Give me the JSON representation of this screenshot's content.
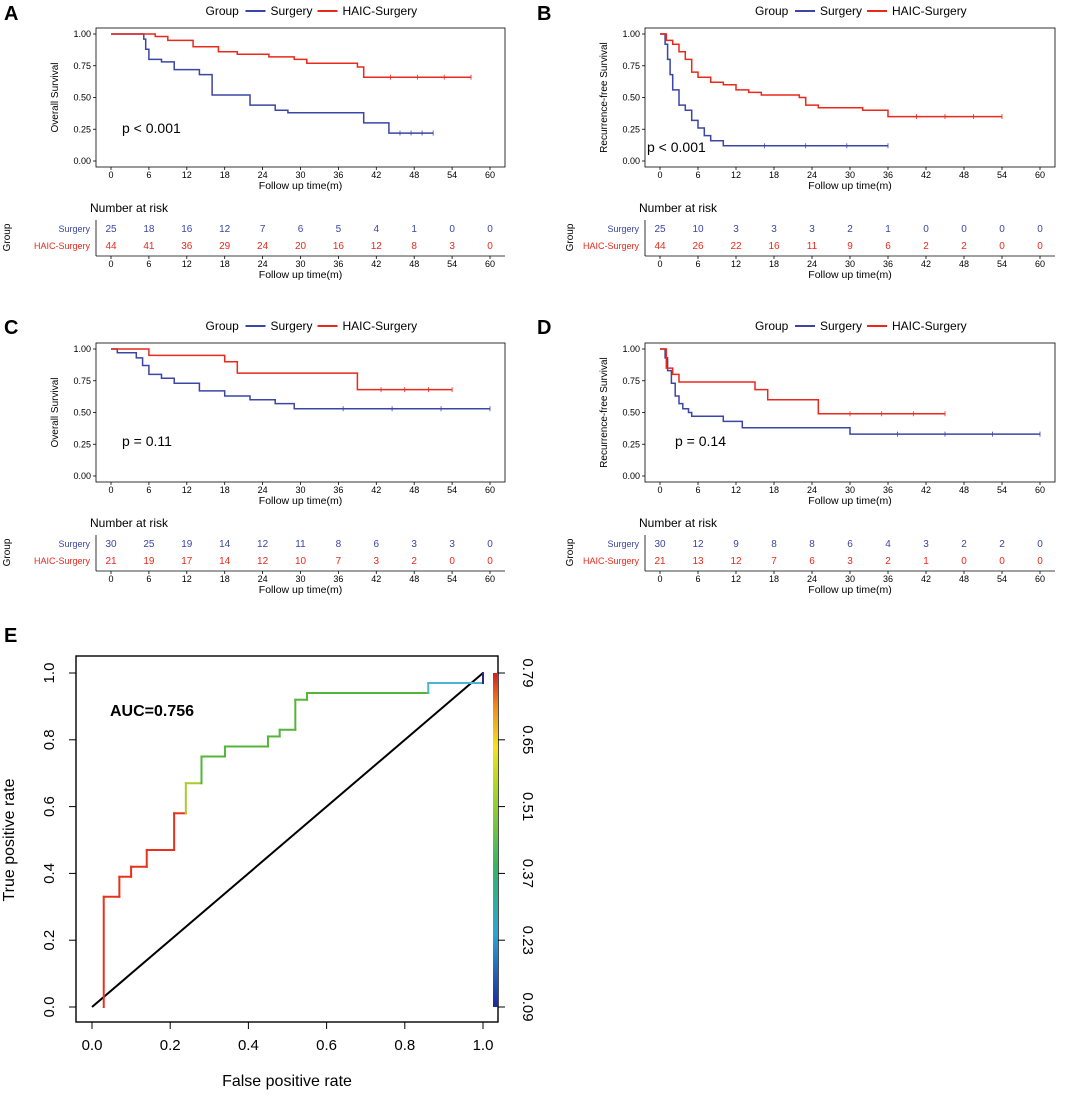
{
  "figure": {
    "panels": [
      "A",
      "B",
      "C",
      "D",
      "E"
    ],
    "legend": {
      "title": "Group",
      "surgery": "Surgery",
      "haic": "HAIC-Surgery"
    },
    "risk": {
      "title": "Number at risk",
      "group_label": "Group",
      "row_surgery": "Surgery",
      "row_haic": "HAIC-Surgery"
    },
    "colors": {
      "surgery": "#3b45a5",
      "haic": "#e8291c",
      "axis": "#000000"
    }
  },
  "chart_data": [
    {
      "type": "line",
      "panel": "A",
      "ylabel": "Overall Survival",
      "xlabel": "Follow up time(m)",
      "annotation": "p < 0.001",
      "xticks": [
        0,
        6,
        12,
        18,
        24,
        30,
        36,
        42,
        48,
        54,
        60
      ],
      "yticks": [
        "0.00",
        "0.25",
        "0.50",
        "0.75",
        "1.00"
      ],
      "xlim": [
        0,
        60
      ],
      "ylim": [
        0,
        1
      ],
      "series": [
        {
          "name": "Surgery",
          "points": [
            [
              0,
              1
            ],
            [
              5,
              1
            ],
            [
              5.2,
              0.96
            ],
            [
              5.5,
              0.88
            ],
            [
              6,
              0.8
            ],
            [
              8,
              0.78
            ],
            [
              10,
              0.72
            ],
            [
              14,
              0.68
            ],
            [
              16,
              0.52
            ],
            [
              20,
              0.52
            ],
            [
              22,
              0.44
            ],
            [
              26,
              0.4
            ],
            [
              28,
              0.38
            ],
            [
              38,
              0.38
            ],
            [
              40,
              0.3
            ],
            [
              43,
              0.3
            ],
            [
              44,
              0.22
            ],
            [
              51,
              0.22
            ]
          ]
        },
        {
          "name": "HAIC-Surgery",
          "points": [
            [
              0,
              1
            ],
            [
              6,
              1
            ],
            [
              7,
              0.98
            ],
            [
              9,
              0.95
            ],
            [
              13,
              0.9
            ],
            [
              17,
              0.86
            ],
            [
              20,
              0.84
            ],
            [
              25,
              0.82
            ],
            [
              29,
              0.8
            ],
            [
              31,
              0.77
            ],
            [
              38,
              0.77
            ],
            [
              39,
              0.74
            ],
            [
              40,
              0.66
            ],
            [
              57,
              0.66
            ]
          ]
        }
      ],
      "risk_table": {
        "times": [
          0,
          6,
          12,
          18,
          24,
          30,
          36,
          42,
          48,
          54,
          60
        ],
        "surgery": [
          "25",
          "18",
          "16",
          "12",
          "7",
          "6",
          "5",
          "4",
          "1",
          "0",
          "0"
        ],
        "haic": [
          "44",
          "41",
          "36",
          "29",
          "24",
          "20",
          "16",
          "12",
          "8",
          "3",
          "0"
        ]
      }
    },
    {
      "type": "line",
      "panel": "B",
      "ylabel": "Recurrence-free Survival",
      "xlabel": "Follow up time(m)",
      "annotation": "p < 0.001",
      "xticks": [
        0,
        6,
        12,
        18,
        24,
        30,
        36,
        42,
        48,
        54,
        60
      ],
      "yticks": [
        "0.00",
        "0.25",
        "0.50",
        "0.75",
        "1.00"
      ],
      "xlim": [
        0,
        60
      ],
      "ylim": [
        0,
        1
      ],
      "series": [
        {
          "name": "Surgery",
          "points": [
            [
              0,
              1
            ],
            [
              0.8,
              0.92
            ],
            [
              1.2,
              0.8
            ],
            [
              1.6,
              0.68
            ],
            [
              2,
              0.56
            ],
            [
              3,
              0.44
            ],
            [
              4,
              0.4
            ],
            [
              5,
              0.32
            ],
            [
              6,
              0.26
            ],
            [
              7,
              0.2
            ],
            [
              8,
              0.16
            ],
            [
              10,
              0.12
            ],
            [
              36,
              0.12
            ]
          ]
        },
        {
          "name": "HAIC-Surgery",
          "points": [
            [
              0,
              1
            ],
            [
              1,
              0.95
            ],
            [
              2,
              0.92
            ],
            [
              3,
              0.86
            ],
            [
              4,
              0.8
            ],
            [
              5,
              0.7
            ],
            [
              6,
              0.66
            ],
            [
              8,
              0.62
            ],
            [
              10,
              0.6
            ],
            [
              12,
              0.56
            ],
            [
              14,
              0.54
            ],
            [
              16,
              0.52
            ],
            [
              22,
              0.5
            ],
            [
              23,
              0.44
            ],
            [
              25,
              0.42
            ],
            [
              32,
              0.4
            ],
            [
              36,
              0.35
            ],
            [
              54,
              0.35
            ]
          ]
        }
      ],
      "risk_table": {
        "times": [
          0,
          6,
          12,
          18,
          24,
          30,
          36,
          42,
          48,
          54,
          60
        ],
        "surgery": [
          "25",
          "10",
          "3",
          "3",
          "3",
          "2",
          "1",
          "0",
          "0",
          "0",
          "0"
        ],
        "haic": [
          "44",
          "26",
          "22",
          "16",
          "11",
          "9",
          "6",
          "2",
          "2",
          "0",
          "0"
        ]
      }
    },
    {
      "type": "line",
      "panel": "C",
      "ylabel": "Overall Survival",
      "xlabel": "Follow up time(m)",
      "annotation": "p = 0.11",
      "xticks": [
        0,
        6,
        12,
        18,
        24,
        30,
        36,
        42,
        48,
        54,
        60
      ],
      "yticks": [
        "0.00",
        "0.25",
        "0.50",
        "0.75",
        "1.00"
      ],
      "xlim": [
        0,
        60
      ],
      "ylim": [
        0,
        1
      ],
      "series": [
        {
          "name": "Surgery",
          "points": [
            [
              0,
              1
            ],
            [
              1,
              0.97
            ],
            [
              4,
              0.93
            ],
            [
              5,
              0.87
            ],
            [
              6,
              0.8
            ],
            [
              8,
              0.77
            ],
            [
              10,
              0.73
            ],
            [
              14,
              0.67
            ],
            [
              18,
              0.63
            ],
            [
              22,
              0.6
            ],
            [
              26,
              0.57
            ],
            [
              29,
              0.53
            ],
            [
              60,
              0.53
            ]
          ]
        },
        {
          "name": "HAIC-Surgery",
          "points": [
            [
              0,
              1
            ],
            [
              6,
              0.95
            ],
            [
              18,
              0.9
            ],
            [
              20,
              0.81
            ],
            [
              38,
              0.81
            ],
            [
              39,
              0.68
            ],
            [
              54,
              0.68
            ]
          ]
        }
      ],
      "risk_table": {
        "times": [
          0,
          6,
          12,
          18,
          24,
          30,
          36,
          42,
          48,
          54,
          60
        ],
        "surgery": [
          "30",
          "25",
          "19",
          "14",
          "12",
          "11",
          "8",
          "6",
          "3",
          "3",
          "0"
        ],
        "haic": [
          "21",
          "19",
          "17",
          "14",
          "12",
          "10",
          "7",
          "3",
          "2",
          "0",
          "0"
        ]
      }
    },
    {
      "type": "line",
      "panel": "D",
      "ylabel": "Recurrence-free Survival",
      "xlabel": "Follow up time(m)",
      "annotation": "p = 0.14",
      "xticks": [
        0,
        6,
        12,
        18,
        24,
        30,
        36,
        42,
        48,
        54,
        60
      ],
      "yticks": [
        "0.00",
        "0.25",
        "0.50",
        "0.75",
        "1.00"
      ],
      "xlim": [
        0,
        60
      ],
      "ylim": [
        0,
        1
      ],
      "series": [
        {
          "name": "Surgery",
          "points": [
            [
              0,
              1
            ],
            [
              0.8,
              0.93
            ],
            [
              1.2,
              0.83
            ],
            [
              1.8,
              0.73
            ],
            [
              2.4,
              0.63
            ],
            [
              3,
              0.57
            ],
            [
              3.6,
              0.53
            ],
            [
              4.5,
              0.5
            ],
            [
              5,
              0.47
            ],
            [
              10,
              0.43
            ],
            [
              13,
              0.38
            ],
            [
              30,
              0.33
            ],
            [
              60,
              0.33
            ]
          ]
        },
        {
          "name": "HAIC-Surgery",
          "points": [
            [
              0,
              1
            ],
            [
              1,
              0.85
            ],
            [
              2,
              0.8
            ],
            [
              3,
              0.74
            ],
            [
              15,
              0.68
            ],
            [
              17,
              0.6
            ],
            [
              25,
              0.49
            ],
            [
              45,
              0.49
            ]
          ]
        }
      ],
      "risk_table": {
        "times": [
          0,
          6,
          12,
          18,
          24,
          30,
          36,
          42,
          48,
          54,
          60
        ],
        "surgery": [
          "30",
          "12",
          "9",
          "8",
          "8",
          "6",
          "4",
          "3",
          "2",
          "2",
          "0"
        ],
        "haic": [
          "21",
          "13",
          "12",
          "7",
          "6",
          "3",
          "2",
          "1",
          "0",
          "0",
          "0"
        ]
      }
    },
    {
      "type": "line",
      "panel": "E",
      "xlabel": "False positive rate",
      "ylabel": "True positive rate",
      "annotation": "AUC=0.756",
      "xticks": [
        "0.0",
        "0.2",
        "0.4",
        "0.6",
        "0.8",
        "1.0"
      ],
      "yticks": [
        "0.0",
        "0.2",
        "0.4",
        "0.6",
        "0.8",
        "1.0"
      ],
      "xlim": [
        0,
        1
      ],
      "ylim": [
        0,
        1
      ],
      "colorbar": {
        "ticks": [
          "0.09",
          "0.23",
          "0.37",
          "0.51",
          "0.65",
          "0.79"
        ],
        "range": [
          0.09,
          0.79
        ]
      },
      "roc": [
        [
          0.03,
          0
        ],
        [
          0.03,
          0.33
        ],
        [
          0.07,
          0.33
        ],
        [
          0.07,
          0.39
        ],
        [
          0.1,
          0.39
        ],
        [
          0.1,
          0.42
        ],
        [
          0.14,
          0.42
        ],
        [
          0.14,
          0.47
        ],
        [
          0.21,
          0.47
        ],
        [
          0.21,
          0.58
        ],
        [
          0.24,
          0.58
        ],
        [
          0.24,
          0.67
        ],
        [
          0.28,
          0.67
        ],
        [
          0.28,
          0.75
        ],
        [
          0.34,
          0.75
        ],
        [
          0.34,
          0.78
        ],
        [
          0.45,
          0.78
        ],
        [
          0.45,
          0.81
        ],
        [
          0.48,
          0.81
        ],
        [
          0.48,
          0.83
        ],
        [
          0.52,
          0.83
        ],
        [
          0.52,
          0.92
        ],
        [
          0.55,
          0.92
        ],
        [
          0.55,
          0.94
        ],
        [
          0.86,
          0.94
        ],
        [
          0.86,
          0.97
        ],
        [
          1,
          0.97
        ],
        [
          1,
          1
        ]
      ],
      "diagonal": [
        [
          0,
          0
        ],
        [
          1,
          1
        ]
      ]
    }
  ]
}
